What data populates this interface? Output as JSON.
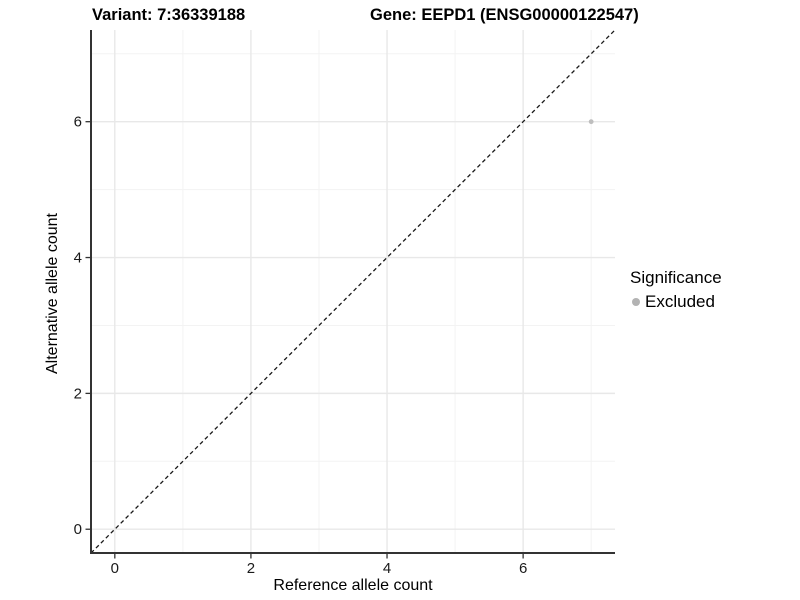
{
  "header": {
    "variant_title": "Variant: 7:36339188",
    "gene_title": "Gene: EEPD1 (ENSG00000122547)"
  },
  "chart_data": {
    "type": "scatter",
    "xlabel": "Reference allele count",
    "ylabel": "Alternative allele count",
    "xlim": [
      -0.35,
      7.35
    ],
    "ylim": [
      -0.35,
      7.35
    ],
    "x_major_ticks": [
      0,
      2,
      4,
      6
    ],
    "y_major_ticks": [
      0,
      2,
      4,
      6
    ],
    "x_minor_ticks": [
      1,
      3,
      5,
      7
    ],
    "y_minor_ticks": [
      1,
      3,
      5,
      7
    ],
    "points": [
      {
        "x": 7,
        "y": 6,
        "series": "Excluded"
      }
    ],
    "abline": {
      "slope": 1,
      "intercept": 0,
      "style": "dashed"
    },
    "grid": "major+minor",
    "legend": {
      "title": "Significance",
      "position": "right",
      "entries": [
        {
          "label": "Excluded",
          "color": "#bebebe"
        }
      ]
    }
  },
  "colors": {
    "point": "#bebebe",
    "legend_dot": "#b3b3b3",
    "grid_major": "#e8e8e8",
    "grid_minor": "#f3f3f3",
    "axis_line": "#333333",
    "abline": "#1a1a1a",
    "background": "#ffffff"
  }
}
